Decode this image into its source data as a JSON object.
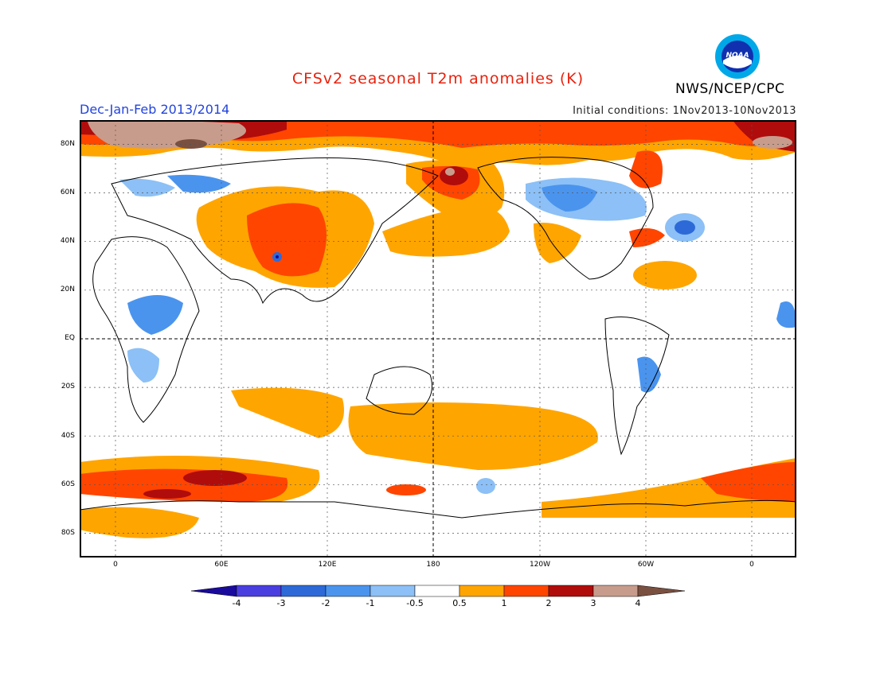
{
  "header": {
    "title": "CFSv2 seasonal T2m anomalies (K)",
    "organization": "NWS/NCEP/CPC",
    "logo_text": "NOAA",
    "season": "Dec-Jan-Feb 2013/2014",
    "initial_conditions": "Initial conditions: 1Nov2013-10Nov2013"
  },
  "axes": {
    "latitude_labels": [
      "80N",
      "60N",
      "40N",
      "20N",
      "EQ",
      "20S",
      "40S",
      "60S",
      "80S"
    ],
    "longitude_labels": [
      "0",
      "60E",
      "120E",
      "180",
      "120W",
      "60W",
      "0"
    ]
  },
  "legend": {
    "labels": [
      "-4",
      "-3",
      "-2",
      "-1",
      "-0.5",
      "0.5",
      "1",
      "2",
      "3",
      "4"
    ],
    "colors": [
      "#1a0b9c",
      "#4a3ee0",
      "#2d6ad8",
      "#4a94ee",
      "#8cc0f6",
      "#ffffff",
      "#ffa500",
      "#ff4500",
      "#b00c0c",
      "#c89c8c",
      "#7a5040"
    ]
  }
}
